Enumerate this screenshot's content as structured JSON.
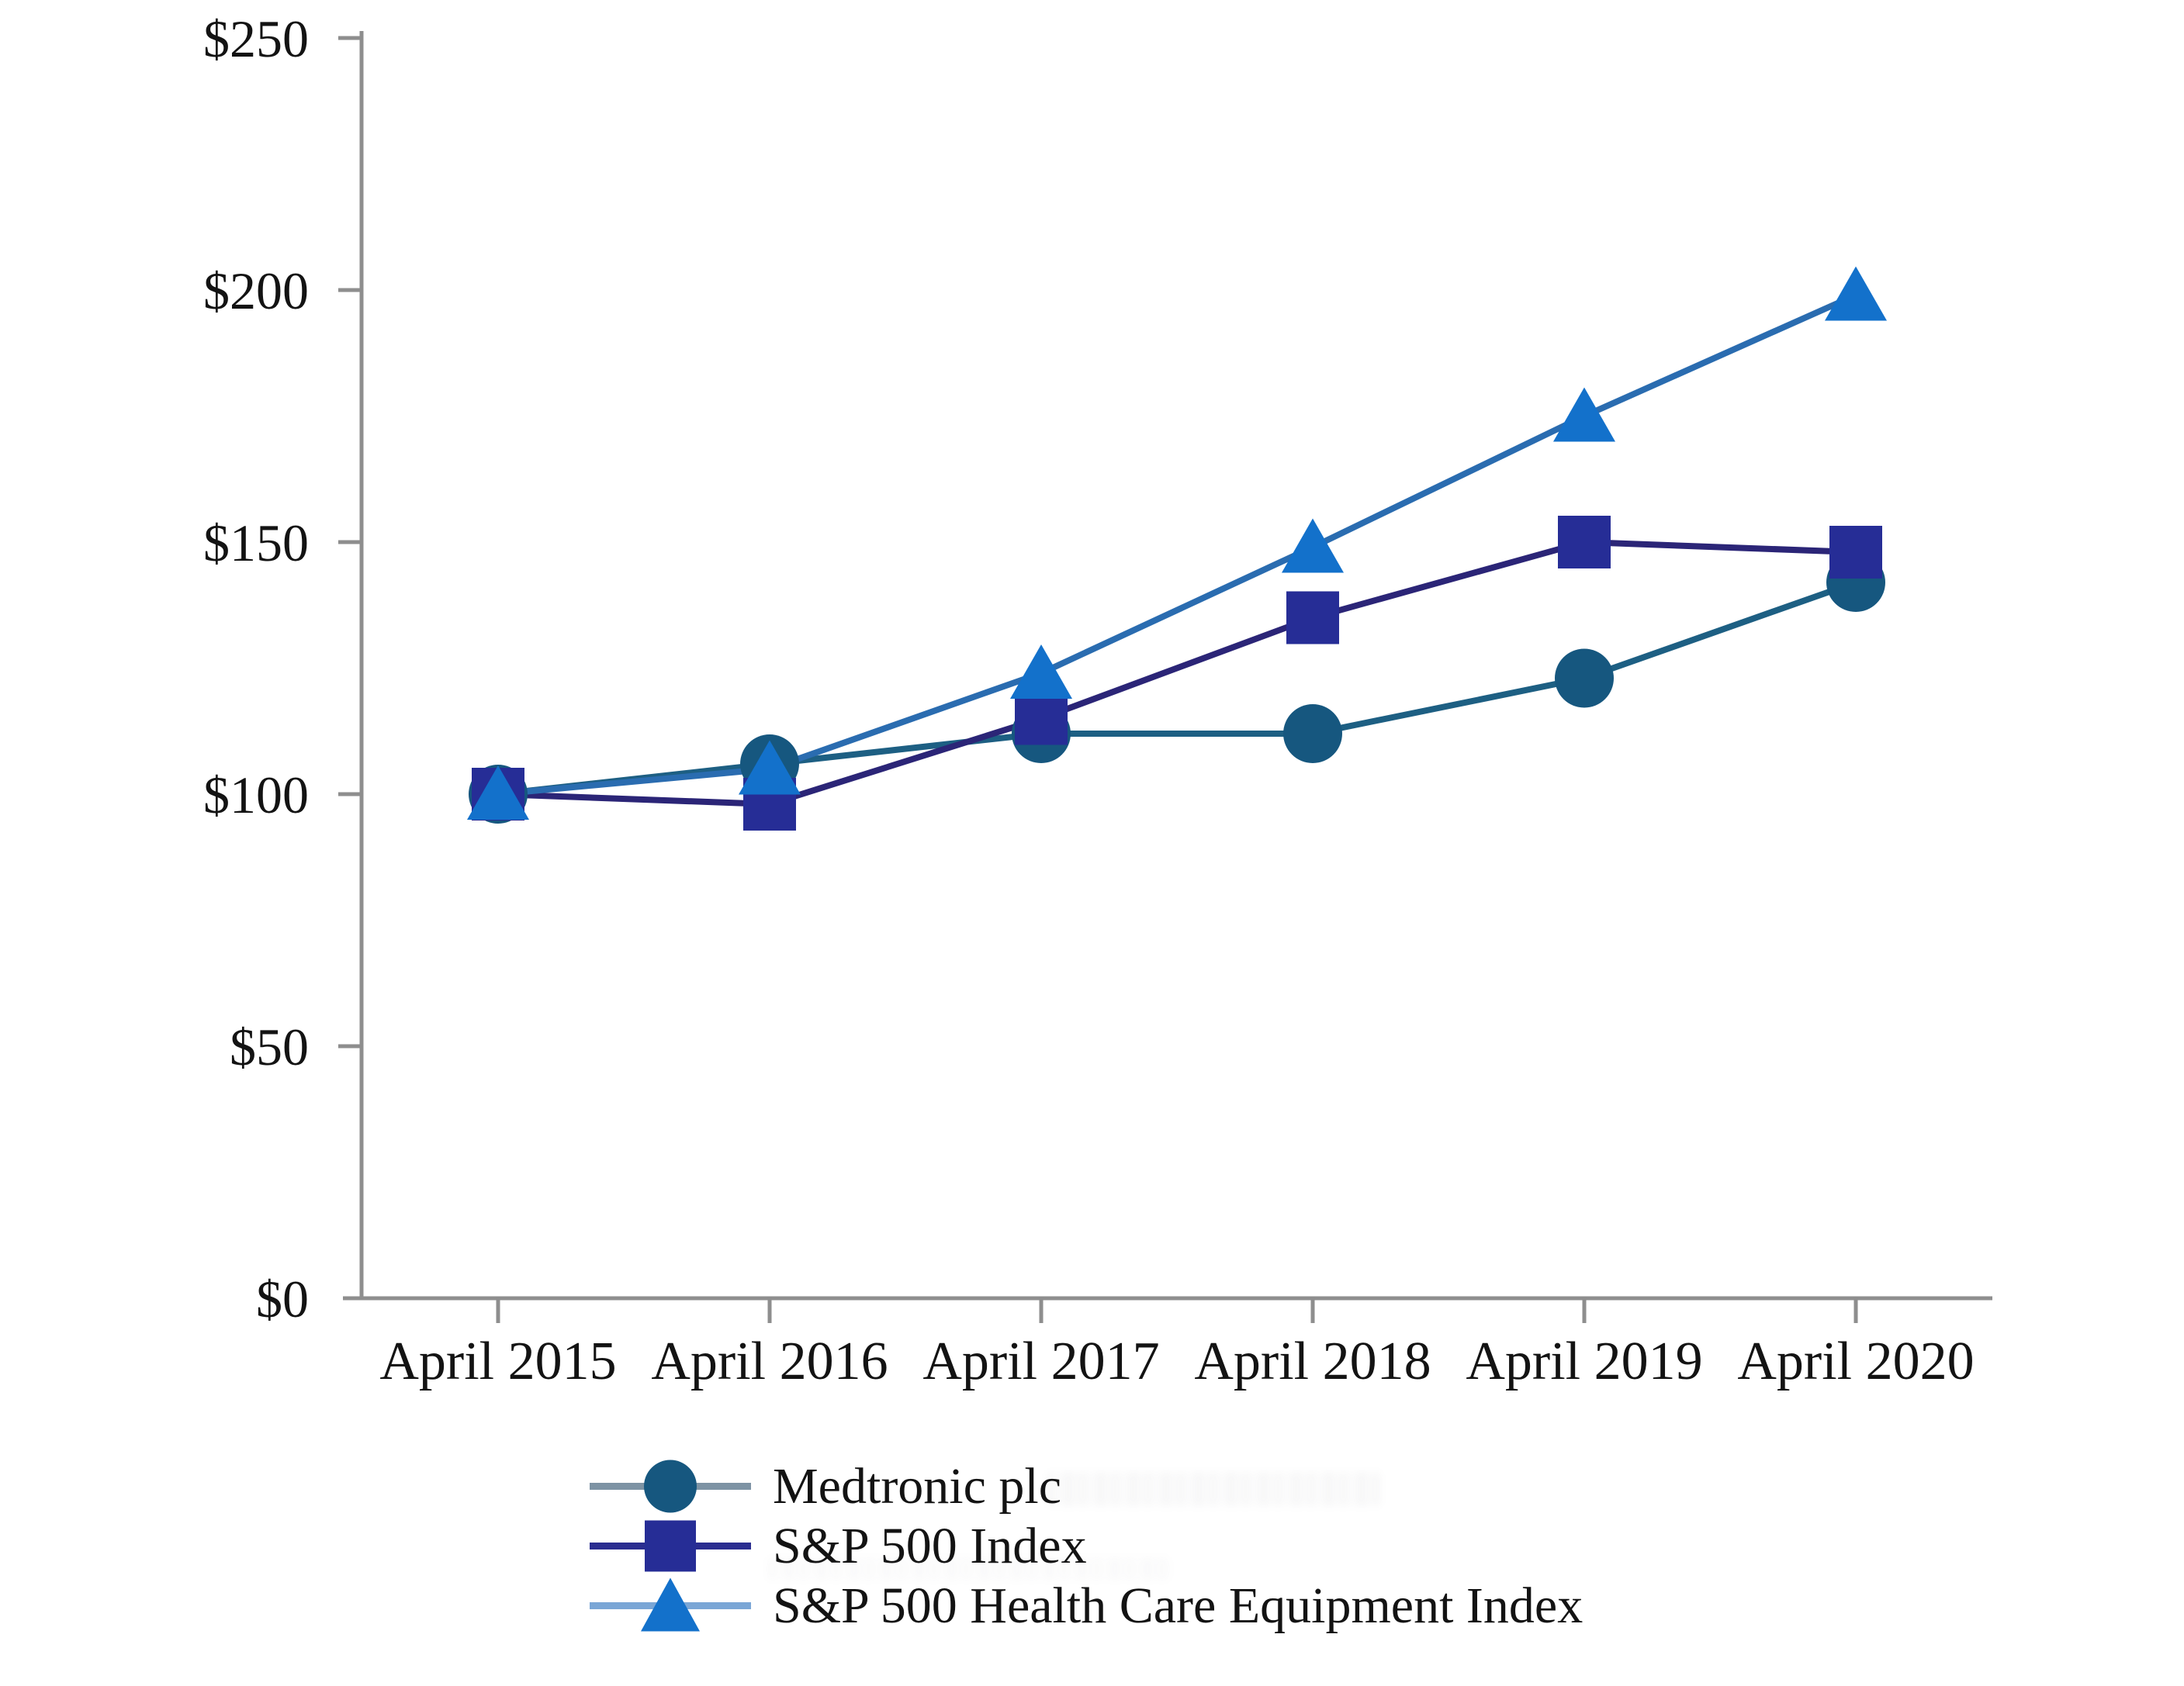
{
  "chart_data": {
    "type": "line",
    "title": "",
    "xlabel": "",
    "ylabel": "",
    "categories": [
      "April 2015",
      "April 2016",
      "April 2017",
      "April 2018",
      "April 2019",
      "April 2020"
    ],
    "ylim": [
      0,
      250
    ],
    "y_ticks": [
      {
        "label": "$250",
        "value": 250
      },
      {
        "label": "$200",
        "value": 200
      },
      {
        "label": "$150",
        "value": 150
      },
      {
        "label": "$100",
        "value": 100
      },
      {
        "label": "$50",
        "value": 50
      },
      {
        "label": "$0",
        "value": 0
      }
    ],
    "grid": false,
    "legend_position": "bottom-left",
    "axis_color": "#8e8e8e",
    "series": [
      {
        "name": "Medtronic plc",
        "marker": "circle",
        "marker_color": "#16577f",
        "line_color": "#1d5f83",
        "legend_line_color": "#7d93a4",
        "values": [
          100,
          106,
          112,
          112,
          123,
          142
        ]
      },
      {
        "name": "S&P 500 Index",
        "marker": "square",
        "marker_color": "#262d96",
        "line_color": "#2b2577",
        "legend_line_color": "#2a2d90",
        "values": [
          100,
          98,
          115,
          135,
          150,
          148
        ]
      },
      {
        "name": "S&P 500 Health Care Equipment Index",
        "marker": "triangle",
        "marker_color": "#1371cb",
        "line_color": "#2a6cb0",
        "legend_line_color": "#7aa6d6",
        "values": [
          100,
          105,
          124,
          149,
          175,
          199
        ]
      }
    ]
  }
}
